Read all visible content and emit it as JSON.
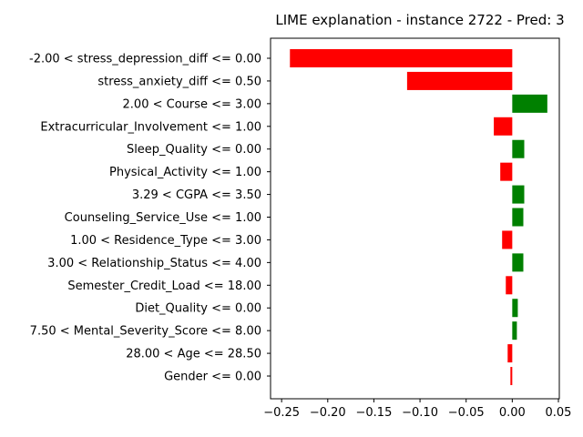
{
  "chart_data": {
    "type": "bar",
    "orientation": "horizontal",
    "title": "LIME explanation - instance 2722 - Pred: 3",
    "xlabel": "",
    "ylabel": "",
    "xlim": [
      -0.262,
      0.051
    ],
    "xticks": [
      -0.25,
      -0.2,
      -0.15,
      -0.1,
      -0.05,
      0.0,
      0.05
    ],
    "xtick_labels": [
      "−0.25",
      "−0.20",
      "−0.15",
      "−0.10",
      "−0.05",
      "0.00",
      "0.05"
    ],
    "grid": false,
    "positive_color": "#008000",
    "negative_color": "#ff0000",
    "categories": [
      "-2.00 < stress_depression_diff <= 0.00",
      "stress_anxiety_diff <= 0.50",
      "2.00 < Course <= 3.00",
      "Extracurricular_Involvement <= 1.00",
      "Sleep_Quality <= 0.00",
      "Physical_Activity <= 1.00",
      "3.29 < CGPA <= 3.50",
      "Counseling_Service_Use <= 1.00",
      "1.00 < Residence_Type <= 3.00",
      "3.00 < Relationship_Status <= 4.00",
      "Semester_Credit_Load <= 18.00",
      "Diet_Quality <= 0.00",
      "7.50 < Mental_Severity_Score <= 8.00",
      "28.00 < Age <= 28.50",
      "Gender <= 0.00"
    ],
    "values": [
      -0.241,
      -0.114,
      0.038,
      -0.02,
      0.013,
      -0.013,
      0.013,
      0.012,
      -0.011,
      0.012,
      -0.007,
      0.006,
      0.005,
      -0.005,
      -0.002
    ]
  }
}
